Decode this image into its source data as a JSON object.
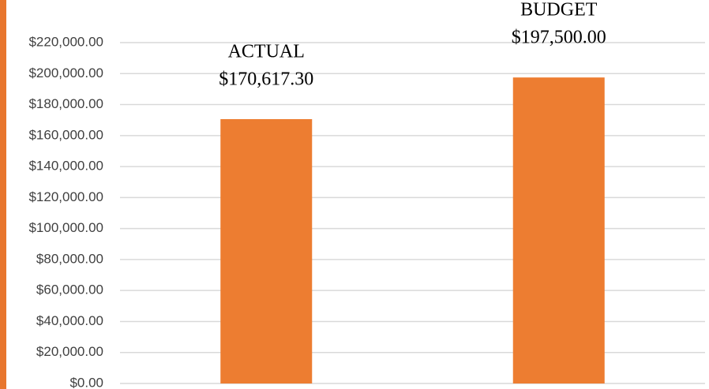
{
  "chart_data": {
    "type": "bar",
    "categories": [
      "ACTUAL",
      "BUDGET"
    ],
    "values": [
      170617.3,
      197500.0
    ],
    "value_labels": [
      "$170,617.30",
      "$197,500.00"
    ],
    "color": "#ed7d31",
    "ylim": [
      0,
      220000
    ],
    "yticks": [
      {
        "value": 0,
        "label": "$0.00"
      },
      {
        "value": 20000,
        "label": "$20,000.00"
      },
      {
        "value": 40000,
        "label": "$40,000.00"
      },
      {
        "value": 60000,
        "label": "$60,000.00"
      },
      {
        "value": 80000,
        "label": "$80,000.00"
      },
      {
        "value": 100000,
        "label": "$100,000.00"
      },
      {
        "value": 120000,
        "label": "$120,000.00"
      },
      {
        "value": 140000,
        "label": "$140,000.00"
      },
      {
        "value": 160000,
        "label": "$160,000.00"
      },
      {
        "value": 180000,
        "label": "$180,000.00"
      },
      {
        "value": 200000,
        "label": "$200,000.00"
      },
      {
        "value": 220000,
        "label": "$220,000.00"
      }
    ],
    "grid": true
  }
}
